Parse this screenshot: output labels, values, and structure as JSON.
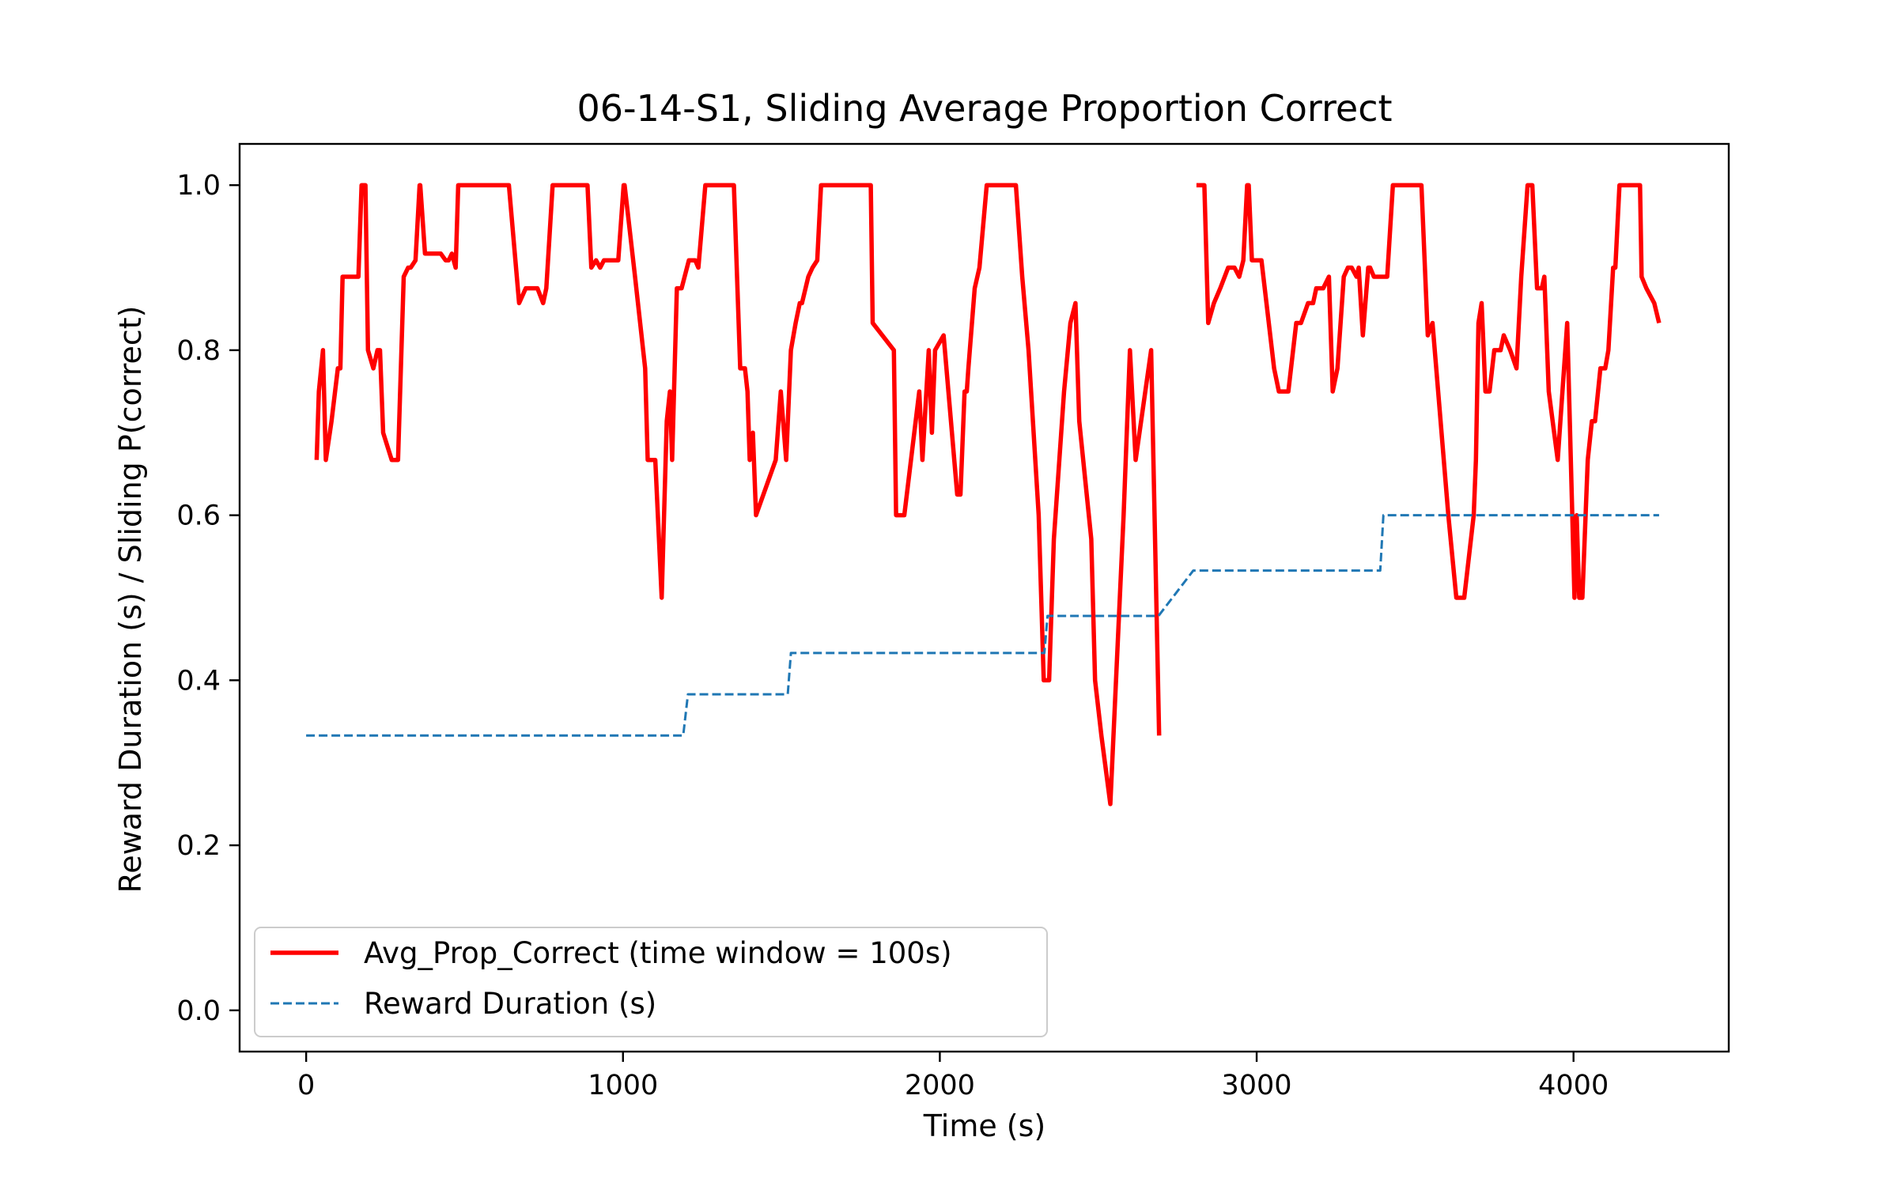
{
  "chart_data": {
    "type": "line",
    "title": "06-14-S1, Sliding Average Proportion Correct",
    "xlabel": "Time (s)",
    "ylabel": "Reward Duration (s) / Sliding P(correct)",
    "xlim": [
      -210,
      4490
    ],
    "ylim": [
      -0.05,
      1.05
    ],
    "xticks": [
      0,
      1000,
      2000,
      3000,
      4000
    ],
    "yticks": [
      0.0,
      0.2,
      0.4,
      0.6,
      0.8,
      1.0
    ],
    "xtick_labels": [
      "0",
      "1000",
      "2000",
      "3000",
      "4000"
    ],
    "ytick_labels": [
      "0.0",
      "0.2",
      "0.4",
      "0.6",
      "0.8",
      "1.0"
    ],
    "grid": false,
    "legend_position": "lower-left",
    "series": [
      {
        "name": "Avg_Prop_Correct (time window = 100s)",
        "color": "#ff0000",
        "style": "solid",
        "segments": [
          [
            [
              33,
              0.667
            ],
            [
              40,
              0.75
            ],
            [
              53,
              0.8
            ],
            [
              62,
              0.667
            ],
            [
              80,
              0.714
            ],
            [
              100,
              0.778
            ],
            [
              108,
              0.778
            ],
            [
              115,
              0.889
            ],
            [
              150,
              0.889
            ],
            [
              165,
              0.889
            ],
            [
              175,
              1.0
            ],
            [
              187,
              1.0
            ],
            [
              195,
              0.8
            ],
            [
              212,
              0.778
            ],
            [
              225,
              0.8
            ],
            [
              233,
              0.8
            ],
            [
              243,
              0.7
            ],
            [
              270,
              0.667
            ],
            [
              290,
              0.667
            ],
            [
              308,
              0.889
            ],
            [
              322,
              0.9
            ],
            [
              330,
              0.9
            ],
            [
              345,
              0.909
            ],
            [
              358,
              1.0
            ],
            [
              360,
              1.0
            ],
            [
              375,
              0.917
            ],
            [
              425,
              0.917
            ],
            [
              440,
              0.909
            ],
            [
              450,
              0.909
            ],
            [
              460,
              0.917
            ],
            [
              472,
              0.9
            ],
            [
              480,
              1.0
            ],
            [
              640,
              1.0
            ],
            [
              672,
              0.857
            ],
            [
              693,
              0.875
            ],
            [
              730,
              0.875
            ],
            [
              748,
              0.857
            ],
            [
              758,
              0.875
            ],
            [
              778,
              1.0
            ],
            [
              888,
              1.0
            ],
            [
              900,
              0.9
            ],
            [
              915,
              0.909
            ],
            [
              928,
              0.9
            ],
            [
              940,
              0.909
            ],
            [
              978,
              0.909
            ],
            [
              985,
              0.909
            ],
            [
              1002,
              1.0
            ],
            [
              1005,
              1.0
            ],
            [
              1038,
              0.889
            ],
            [
              1070,
              0.778
            ],
            [
              1078,
              0.667
            ],
            [
              1102,
              0.667
            ],
            [
              1122,
              0.5
            ],
            [
              1138,
              0.714
            ],
            [
              1148,
              0.75
            ],
            [
              1155,
              0.667
            ],
            [
              1170,
              0.875
            ],
            [
              1185,
              0.875
            ],
            [
              1208,
              0.909
            ],
            [
              1228,
              0.909
            ],
            [
              1238,
              0.9
            ],
            [
              1260,
              1.0
            ],
            [
              1350,
              1.0
            ],
            [
              1370,
              0.778
            ],
            [
              1385,
              0.778
            ],
            [
              1393,
              0.75
            ],
            [
              1400,
              0.667
            ],
            [
              1410,
              0.7
            ],
            [
              1420,
              0.6
            ],
            [
              1482,
              0.667
            ],
            [
              1498,
              0.75
            ],
            [
              1515,
              0.667
            ],
            [
              1530,
              0.8
            ],
            [
              1545,
              0.833
            ],
            [
              1558,
              0.857
            ],
            [
              1565,
              0.857
            ],
            [
              1585,
              0.889
            ],
            [
              1598,
              0.9
            ],
            [
              1613,
              0.909
            ],
            [
              1625,
              1.0
            ],
            [
              1782,
              1.0
            ],
            [
              1788,
              0.833
            ],
            [
              1855,
              0.8
            ],
            [
              1862,
              0.6
            ],
            [
              1888,
              0.6
            ],
            [
              1935,
              0.75
            ],
            [
              1945,
              0.667
            ],
            [
              1965,
              0.8
            ],
            [
              1975,
              0.7
            ],
            [
              1985,
              0.8
            ],
            [
              2012,
              0.818
            ],
            [
              2055,
              0.625
            ],
            [
              2065,
              0.625
            ],
            [
              2078,
              0.75
            ],
            [
              2085,
              0.75
            ],
            [
              2090,
              0.778
            ],
            [
              2110,
              0.875
            ],
            [
              2125,
              0.9
            ],
            [
              2148,
              1.0
            ],
            [
              2240,
              1.0
            ],
            [
              2260,
              0.889
            ],
            [
              2280,
              0.8
            ],
            [
              2312,
              0.6
            ],
            [
              2328,
              0.4
            ],
            [
              2345,
              0.4
            ],
            [
              2360,
              0.571
            ],
            [
              2392,
              0.75
            ],
            [
              2412,
              0.833
            ],
            [
              2428,
              0.857
            ],
            [
              2440,
              0.714
            ],
            [
              2478,
              0.571
            ],
            [
              2490,
              0.4
            ],
            [
              2510,
              0.333
            ],
            [
              2538,
              0.25
            ],
            [
              2580,
              0.6
            ],
            [
              2600,
              0.8
            ],
            [
              2618,
              0.667
            ],
            [
              2667,
              0.8
            ],
            [
              2692,
              0.333
            ]
          ],
          [
            [
              2810,
              1.0
            ],
            [
              2835,
              1.0
            ],
            [
              2847,
              0.833
            ],
            [
              2865,
              0.857
            ],
            [
              2885,
              0.875
            ],
            [
              2910,
              0.9
            ],
            [
              2930,
              0.9
            ],
            [
              2945,
              0.889
            ],
            [
              2958,
              0.909
            ],
            [
              2970,
              1.0
            ],
            [
              2975,
              1.0
            ],
            [
              2985,
              0.909
            ],
            [
              3015,
              0.909
            ],
            [
              3055,
              0.778
            ],
            [
              3070,
              0.75
            ],
            [
              3100,
              0.75
            ],
            [
              3125,
              0.833
            ],
            [
              3140,
              0.833
            ],
            [
              3162,
              0.857
            ],
            [
              3178,
              0.857
            ],
            [
              3188,
              0.875
            ],
            [
              3210,
              0.875
            ],
            [
              3228,
              0.889
            ],
            [
              3240,
              0.75
            ],
            [
              3255,
              0.778
            ],
            [
              3275,
              0.889
            ],
            [
              3288,
              0.9
            ],
            [
              3300,
              0.9
            ],
            [
              3315,
              0.889
            ],
            [
              3322,
              0.9
            ],
            [
              3335,
              0.818
            ],
            [
              3352,
              0.9
            ],
            [
              3358,
              0.9
            ],
            [
              3370,
              0.889
            ],
            [
              3412,
              0.889
            ],
            [
              3430,
              1.0
            ],
            [
              3520,
              1.0
            ],
            [
              3540,
              0.818
            ],
            [
              3555,
              0.833
            ],
            [
              3605,
              0.6
            ],
            [
              3630,
              0.5
            ],
            [
              3655,
              0.5
            ],
            [
              3685,
              0.6
            ],
            [
              3692,
              0.667
            ],
            [
              3700,
              0.833
            ],
            [
              3710,
              0.857
            ],
            [
              3722,
              0.75
            ],
            [
              3735,
              0.75
            ],
            [
              3750,
              0.8
            ],
            [
              3770,
              0.8
            ],
            [
              3780,
              0.818
            ],
            [
              3800,
              0.8
            ],
            [
              3820,
              0.778
            ],
            [
              3835,
              0.889
            ],
            [
              3855,
              1.0
            ],
            [
              3870,
              1.0
            ],
            [
              3885,
              0.875
            ],
            [
              3900,
              0.875
            ],
            [
              3908,
              0.889
            ],
            [
              3922,
              0.75
            ],
            [
              3950,
              0.667
            ],
            [
              3980,
              0.833
            ],
            [
              4003,
              0.5
            ],
            [
              4010,
              0.6
            ],
            [
              4018,
              0.5
            ],
            [
              4028,
              0.5
            ],
            [
              4045,
              0.667
            ],
            [
              4058,
              0.714
            ],
            [
              4068,
              0.714
            ],
            [
              4085,
              0.778
            ],
            [
              4100,
              0.778
            ],
            [
              4110,
              0.8
            ],
            [
              4125,
              0.9
            ],
            [
              4132,
              0.9
            ],
            [
              4145,
              1.0
            ],
            [
              4210,
              1.0
            ],
            [
              4215,
              0.889
            ],
            [
              4230,
              0.875
            ],
            [
              4255,
              0.857
            ],
            [
              4270,
              0.833
            ]
          ]
        ]
      },
      {
        "name": "Reward Duration (s)",
        "color": "#1f77b4",
        "style": "dashed",
        "segments": [
          [
            [
              0,
              0.333
            ],
            [
              1190,
              0.333
            ],
            [
              1205,
              0.383
            ],
            [
              1520,
              0.383
            ],
            [
              1530,
              0.433
            ],
            [
              2330,
              0.433
            ],
            [
              2340,
              0.478
            ],
            [
              2690,
              0.478
            ],
            [
              2800,
              0.533
            ],
            [
              3390,
              0.533
            ],
            [
              3400,
              0.6
            ],
            [
              4270,
              0.6
            ]
          ]
        ]
      }
    ]
  }
}
